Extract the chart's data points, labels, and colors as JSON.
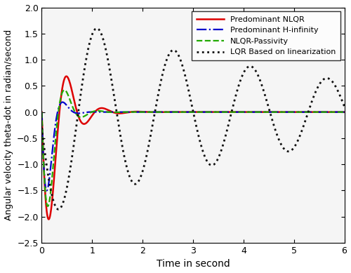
{
  "title": "",
  "xlabel": "Time in second",
  "ylabel": "Angular velocity theta-dot in radian/second",
  "xlim": [
    0,
    6
  ],
  "ylim": [
    -2.5,
    2
  ],
  "yticks": [
    -2.5,
    -2,
    -1.5,
    -1,
    -0.5,
    0,
    0.5,
    1,
    1.5,
    2
  ],
  "xticks": [
    0,
    1,
    2,
    3,
    4,
    5,
    6
  ],
  "legend": [
    {
      "label": "Predominant NLQR",
      "color": "#dd0000",
      "linestyle": "solid",
      "linewidth": 1.8
    },
    {
      "label": "Predominant H-infinity",
      "color": "#0000cc",
      "linestyle": "dashdot",
      "linewidth": 1.6
    },
    {
      "label": "NLQR-Passivity",
      "color": "#22aa00",
      "linestyle": "dashed",
      "linewidth": 1.6
    },
    {
      "label": "LQR Based on linearization",
      "color": "#111111",
      "linestyle": "dotted",
      "linewidth": 2.0
    }
  ],
  "figsize": [
    5.0,
    3.89
  ],
  "dpi": 100
}
